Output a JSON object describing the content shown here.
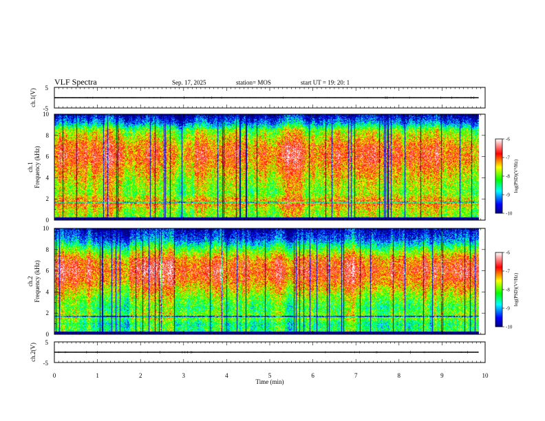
{
  "header": {
    "title": "VLF Spectra",
    "date": "Sep. 17, 2025",
    "station": "station= MOS",
    "start": "start UT =   19: 20: 1"
  },
  "chart_data": [
    {
      "type": "line",
      "panel": "waveform-ch1",
      "ylabel": "ch.1(V)",
      "ylim": [
        -5,
        5
      ],
      "yticks": [
        "5",
        "-5"
      ],
      "baseline_value": 0,
      "x_range_min": [
        0,
        9.85
      ]
    },
    {
      "type": "heatmap",
      "panel": "spectrogram-ch1",
      "ylabel_line1": "ch.1",
      "ylabel_line2": "Frequency (kHz)",
      "xlim": [
        0,
        10
      ],
      "ylim": [
        0,
        10
      ],
      "data_xmax": 9.85,
      "yticks": [
        "0",
        "2",
        "4",
        "6",
        "8",
        "10"
      ],
      "colorbar": {
        "label": "log(PSD)(V²/Hz)",
        "range": [
          -10,
          -6
        ],
        "ticks": [
          "-6",
          "-7",
          "-8",
          "-9",
          "-10"
        ],
        "colors": [
          "#000080",
          "#0000ff",
          "#00ffff",
          "#00ff00",
          "#ffff00",
          "#ff0000",
          "#ffffff"
        ]
      },
      "level_profile_khz": [
        [
          0.2,
          0.55
        ],
        [
          1,
          0.6
        ],
        [
          1.6,
          0.75
        ],
        [
          2.5,
          0.55
        ],
        [
          3.5,
          0.6
        ],
        [
          5,
          0.72
        ],
        [
          6,
          0.8
        ],
        [
          7,
          0.75
        ],
        [
          8.5,
          0.55
        ],
        [
          9.2,
          0.25
        ],
        [
          10,
          0.05
        ]
      ]
    },
    {
      "type": "heatmap",
      "panel": "spectrogram-ch2",
      "ylabel_line1": "ch.2",
      "ylabel_line2": "Frequency (kHz)",
      "xlim": [
        0,
        10
      ],
      "ylim": [
        0,
        10
      ],
      "data_xmax": 9.85,
      "yticks": [
        "0",
        "2",
        "4",
        "6",
        "8",
        "10"
      ],
      "colorbar": {
        "label": "log(PSD)(V²/Hz)",
        "range": [
          -10,
          -6
        ],
        "ticks": [
          "-6",
          "-7",
          "-8",
          "-9",
          "-10"
        ],
        "colors": [
          "#000080",
          "#0000ff",
          "#00ffff",
          "#00ff00",
          "#ffff00",
          "#ff0000",
          "#ffffff"
        ]
      },
      "level_profile_khz": [
        [
          0.2,
          0.45
        ],
        [
          1,
          0.4
        ],
        [
          1.6,
          0.55
        ],
        [
          2.5,
          0.45
        ],
        [
          3.5,
          0.55
        ],
        [
          5,
          0.75
        ],
        [
          6,
          0.82
        ],
        [
          7,
          0.75
        ],
        [
          8,
          0.5
        ],
        [
          9,
          0.2
        ],
        [
          10,
          0.05
        ]
      ]
    },
    {
      "type": "line",
      "panel": "waveform-ch2",
      "ylabel": "ch.2(V)",
      "ylim": [
        -5,
        5
      ],
      "yticks": [
        "5",
        "-5"
      ],
      "baseline_value": 0,
      "x_range_min": [
        0,
        9.85
      ]
    }
  ],
  "xaxis": {
    "label": "Time (min)",
    "ticks": [
      "0",
      "1",
      "2",
      "3",
      "4",
      "5",
      "6",
      "7",
      "8",
      "9",
      "10"
    ],
    "range": [
      0,
      10
    ]
  }
}
